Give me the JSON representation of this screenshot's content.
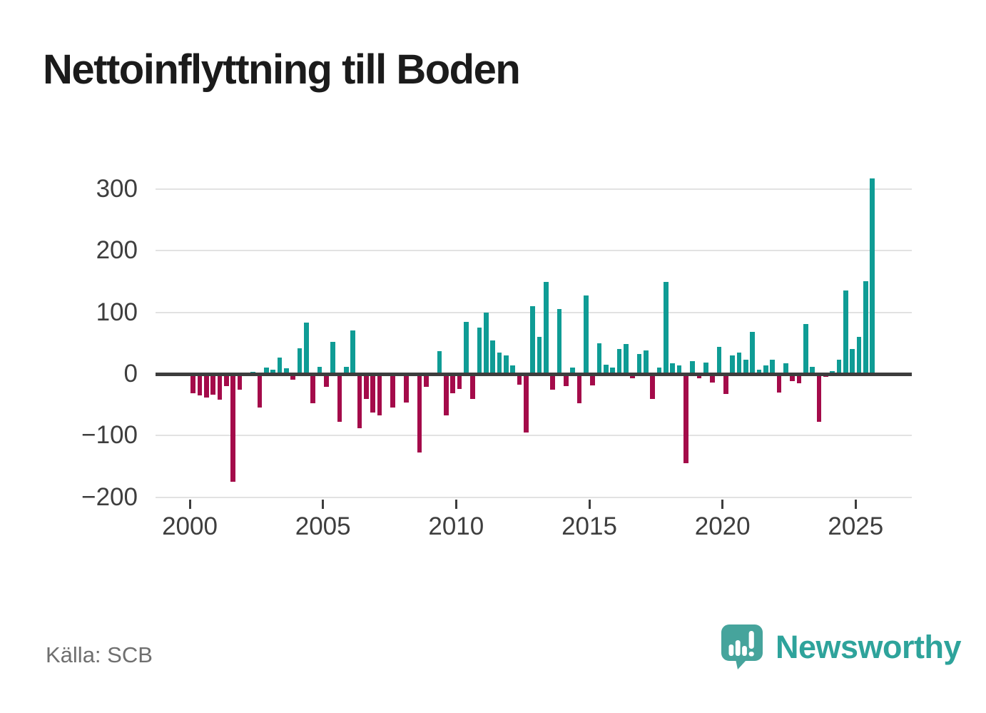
{
  "source": "Källa: SCB",
  "branding": {
    "logo_text": "Newsworthy",
    "logo_icon": "bar-chart-speech-bubble-icon"
  },
  "colors": {
    "positive_bar": "#0f9c95",
    "negative_bar": "#a40b4a",
    "zero_axis": "#3d3d3d",
    "gridline": "#e2e2e2",
    "tick_label": "#3e3e3e",
    "title_text": "#1b1b1b",
    "source_text": "#6f6f6f",
    "logo": "#2ea39b"
  },
  "chart_data": {
    "type": "bar",
    "title": "Nettoinflyttning till Boden",
    "xlabel": "",
    "ylabel": "",
    "x_unit": "quarter",
    "grid": true,
    "legend": "none",
    "ylim": [
      -200,
      330
    ],
    "yticks": [
      300,
      200,
      100,
      0,
      -100,
      -200
    ],
    "ytick_labels": [
      "300",
      "200",
      "100",
      "0",
      "−100",
      "−200"
    ],
    "xticks": [
      2000,
      2005,
      2010,
      2015,
      2020,
      2025
    ],
    "categories": [
      "2000 Q1",
      "2000 Q2",
      "2000 Q3",
      "2000 Q4",
      "2001 Q1",
      "2001 Q2",
      "2001 Q3",
      "2001 Q4",
      "2002 Q1",
      "2002 Q2",
      "2002 Q3",
      "2002 Q4",
      "2003 Q1",
      "2003 Q2",
      "2003 Q3",
      "2003 Q4",
      "2004 Q1",
      "2004 Q2",
      "2004 Q3",
      "2004 Q4",
      "2005 Q1",
      "2005 Q2",
      "2005 Q3",
      "2005 Q4",
      "2006 Q1",
      "2006 Q2",
      "2006 Q3",
      "2006 Q4",
      "2007 Q1",
      "2007 Q2",
      "2007 Q3",
      "2007 Q4",
      "2008 Q1",
      "2008 Q2",
      "2008 Q3",
      "2008 Q4",
      "2009 Q1",
      "2009 Q2",
      "2009 Q3",
      "2009 Q4",
      "2010 Q1",
      "2010 Q2",
      "2010 Q3",
      "2010 Q4",
      "2011 Q1",
      "2011 Q2",
      "2011 Q3",
      "2011 Q4",
      "2012 Q1",
      "2012 Q2",
      "2012 Q3",
      "2012 Q4",
      "2013 Q1",
      "2013 Q2",
      "2013 Q3",
      "2013 Q4",
      "2014 Q1",
      "2014 Q2",
      "2014 Q3",
      "2014 Q4",
      "2015 Q1",
      "2015 Q2",
      "2015 Q3",
      "2015 Q4",
      "2016 Q1",
      "2016 Q2",
      "2016 Q3",
      "2016 Q4",
      "2017 Q1",
      "2017 Q2",
      "2017 Q3",
      "2017 Q4",
      "2018 Q1",
      "2018 Q2",
      "2018 Q3",
      "2018 Q4",
      "2019 Q1",
      "2019 Q2",
      "2019 Q3",
      "2019 Q4",
      "2020 Q1",
      "2020 Q2",
      "2020 Q3",
      "2020 Q4",
      "2021 Q1",
      "2021 Q2",
      "2021 Q3",
      "2021 Q4",
      "2022 Q1",
      "2022 Q2",
      "2022 Q3",
      "2022 Q4",
      "2023 Q1",
      "2023 Q2",
      "2023 Q3",
      "2023 Q4",
      "2024 Q1",
      "2024 Q2",
      "2024 Q3",
      "2024 Q4",
      "2025 Q1",
      "2025 Q2",
      "2025 Q3"
    ],
    "values": [
      -31,
      -35,
      -38,
      -34,
      -42,
      -20,
      -175,
      -25,
      0,
      3,
      -54,
      10,
      7,
      27,
      9,
      -9,
      42,
      83,
      -48,
      12,
      -21,
      52,
      -78,
      12,
      71,
      -88,
      -40,
      -63,
      -67,
      0,
      -54,
      0,
      -46,
      0,
      -127,
      -21,
      0,
      37,
      -67,
      -31,
      -24,
      85,
      -41,
      75,
      100,
      55,
      35,
      30,
      14,
      -17,
      -95,
      110,
      60,
      150,
      -25,
      105,
      -20,
      11,
      -48,
      128,
      -19,
      50,
      15,
      10,
      41,
      49,
      -7,
      32,
      38,
      -40,
      10,
      150,
      17,
      14,
      -145,
      21,
      -7,
      19,
      -14,
      44,
      -32,
      30,
      35,
      23,
      68,
      7,
      14,
      23,
      -30,
      18,
      -12,
      -15,
      81,
      12,
      -77,
      -4,
      5,
      23,
      136,
      41,
      60,
      151,
      318
    ]
  }
}
